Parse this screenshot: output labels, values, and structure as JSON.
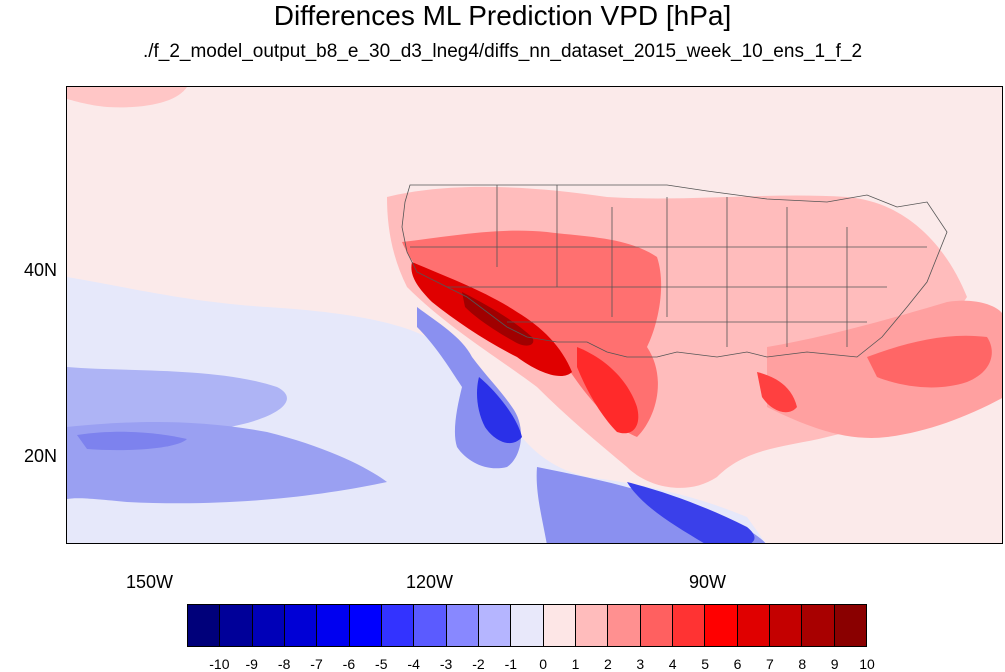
{
  "title": "Differences ML Prediction VPD [hPa]",
  "subtitle": "./f_2_model_output_b8_e_30_d3_lneg4/diffs_nn_dataset_2015_week_10_ens_1_f_2",
  "map": {
    "x_ticks": [
      "150W",
      "120W",
      "90W"
    ],
    "y_ticks": [
      "40N",
      "20N"
    ]
  },
  "colorbar": {
    "labels": [
      "-10",
      "-9",
      "-8",
      "-7",
      "-6",
      "-5",
      "-4",
      "-3",
      "-2",
      "-1",
      "0",
      "1",
      "2",
      "3",
      "4",
      "5",
      "6",
      "7",
      "8",
      "9",
      "10"
    ],
    "colors": [
      "#00007a",
      "#000099",
      "#0000b8",
      "#0000d6",
      "#0000f0",
      "#0000ff",
      "#3333ff",
      "#5b5bff",
      "#8888ff",
      "#b5b5ff",
      "#e8e8fa",
      "#fde6e6",
      "#ffbcbc",
      "#ff9090",
      "#ff6060",
      "#ff3333",
      "#ff0000",
      "#e00000",
      "#c40000",
      "#a80000",
      "#8a0000"
    ]
  }
}
